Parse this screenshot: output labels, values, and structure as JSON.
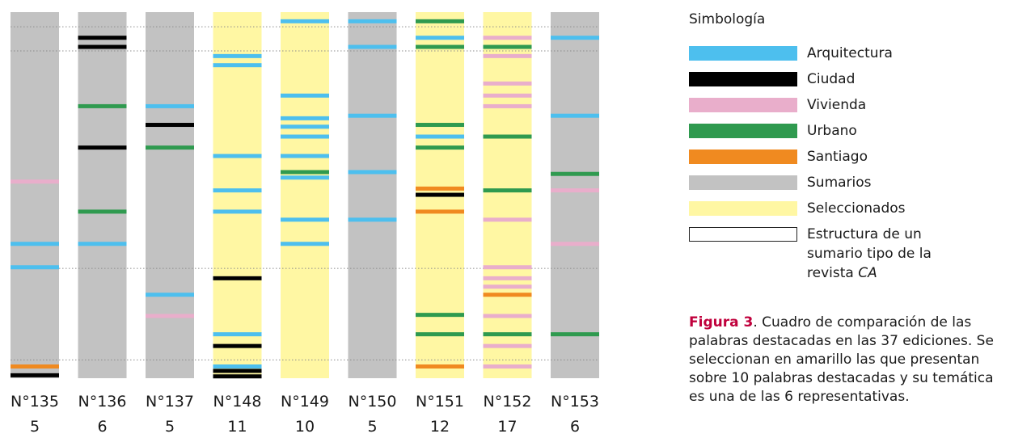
{
  "chart_data": {
    "type": "heatmap",
    "editions": [
      {
        "name": "N°135",
        "count": "5",
        "kind": "Sumarios",
        "marks": [
          {
            "pos": 0.463,
            "cat": "Vivienda"
          },
          {
            "pos": 0.633,
            "cat": "Arquitectura"
          },
          {
            "pos": 0.697,
            "cat": "Arquitectura"
          },
          {
            "pos": 0.968,
            "cat": "Santiago"
          },
          {
            "pos": 0.992,
            "cat": "Ciudad"
          }
        ]
      },
      {
        "name": "N°136",
        "count": "6",
        "kind": "Sumarios",
        "marks": [
          {
            "pos": 0.07,
            "cat": "Ciudad"
          },
          {
            "pos": 0.095,
            "cat": "Ciudad"
          },
          {
            "pos": 0.257,
            "cat": "Urbano"
          },
          {
            "pos": 0.37,
            "cat": "Ciudad"
          },
          {
            "pos": 0.545,
            "cat": "Urbano"
          },
          {
            "pos": 0.633,
            "cat": "Arquitectura"
          }
        ]
      },
      {
        "name": "N°137",
        "count": "5",
        "kind": "Sumarios",
        "marks": [
          {
            "pos": 0.257,
            "cat": "Arquitectura"
          },
          {
            "pos": 0.308,
            "cat": "Ciudad"
          },
          {
            "pos": 0.37,
            "cat": "Urbano"
          },
          {
            "pos": 0.772,
            "cat": "Arquitectura"
          },
          {
            "pos": 0.83,
            "cat": "Vivienda"
          }
        ]
      },
      {
        "name": "N°148",
        "count": "11",
        "kind": "Seleccionados",
        "marks": [
          {
            "pos": 0.12,
            "cat": "Arquitectura"
          },
          {
            "pos": 0.145,
            "cat": "Arquitectura"
          },
          {
            "pos": 0.393,
            "cat": "Arquitectura"
          },
          {
            "pos": 0.487,
            "cat": "Arquitectura"
          },
          {
            "pos": 0.545,
            "cat": "Arquitectura"
          },
          {
            "pos": 0.727,
            "cat": "Ciudad"
          },
          {
            "pos": 0.88,
            "cat": "Arquitectura"
          },
          {
            "pos": 0.912,
            "cat": "Ciudad"
          },
          {
            "pos": 0.968,
            "cat": "Arquitectura"
          },
          {
            "pos": 0.98,
            "cat": "Ciudad"
          },
          {
            "pos": 0.995,
            "cat": "Ciudad"
          }
        ]
      },
      {
        "name": "N°149",
        "count": "10",
        "kind": "Seleccionados",
        "marks": [
          {
            "pos": 0.025,
            "cat": "Arquitectura"
          },
          {
            "pos": 0.228,
            "cat": "Arquitectura"
          },
          {
            "pos": 0.29,
            "cat": "Arquitectura"
          },
          {
            "pos": 0.313,
            "cat": "Arquitectura"
          },
          {
            "pos": 0.34,
            "cat": "Arquitectura"
          },
          {
            "pos": 0.393,
            "cat": "Arquitectura"
          },
          {
            "pos": 0.437,
            "cat": "Urbano"
          },
          {
            "pos": 0.452,
            "cat": "Arquitectura"
          },
          {
            "pos": 0.567,
            "cat": "Arquitectura"
          },
          {
            "pos": 0.633,
            "cat": "Arquitectura"
          }
        ]
      },
      {
        "name": "N°150",
        "count": "5",
        "kind": "Sumarios",
        "marks": [
          {
            "pos": 0.025,
            "cat": "Arquitectura"
          },
          {
            "pos": 0.095,
            "cat": "Arquitectura"
          },
          {
            "pos": 0.283,
            "cat": "Arquitectura"
          },
          {
            "pos": 0.437,
            "cat": "Arquitectura"
          },
          {
            "pos": 0.567,
            "cat": "Arquitectura"
          }
        ]
      },
      {
        "name": "N°151",
        "count": "12",
        "kind": "Seleccionados",
        "marks": [
          {
            "pos": 0.025,
            "cat": "Urbano"
          },
          {
            "pos": 0.07,
            "cat": "Arquitectura"
          },
          {
            "pos": 0.095,
            "cat": "Urbano"
          },
          {
            "pos": 0.308,
            "cat": "Urbano"
          },
          {
            "pos": 0.34,
            "cat": "Arquitectura"
          },
          {
            "pos": 0.37,
            "cat": "Urbano"
          },
          {
            "pos": 0.482,
            "cat": "Santiago"
          },
          {
            "pos": 0.499,
            "cat": "Ciudad"
          },
          {
            "pos": 0.545,
            "cat": "Santiago"
          },
          {
            "pos": 0.827,
            "cat": "Urbano"
          },
          {
            "pos": 0.88,
            "cat": "Urbano"
          },
          {
            "pos": 0.968,
            "cat": "Santiago"
          }
        ]
      },
      {
        "name": "N°152",
        "count": "17",
        "kind": "Seleccionados",
        "marks": [
          {
            "pos": 0.07,
            "cat": "Vivienda"
          },
          {
            "pos": 0.095,
            "cat": "Urbano"
          },
          {
            "pos": 0.12,
            "cat": "Vivienda"
          },
          {
            "pos": 0.195,
            "cat": "Vivienda"
          },
          {
            "pos": 0.228,
            "cat": "Vivienda"
          },
          {
            "pos": 0.257,
            "cat": "Vivienda"
          },
          {
            "pos": 0.34,
            "cat": "Urbano"
          },
          {
            "pos": 0.487,
            "cat": "Urbano"
          },
          {
            "pos": 0.567,
            "cat": "Vivienda"
          },
          {
            "pos": 0.697,
            "cat": "Vivienda"
          },
          {
            "pos": 0.727,
            "cat": "Vivienda"
          },
          {
            "pos": 0.75,
            "cat": "Vivienda"
          },
          {
            "pos": 0.772,
            "cat": "Santiago"
          },
          {
            "pos": 0.83,
            "cat": "Vivienda"
          },
          {
            "pos": 0.88,
            "cat": "Urbano"
          },
          {
            "pos": 0.912,
            "cat": "Vivienda"
          },
          {
            "pos": 0.968,
            "cat": "Vivienda"
          }
        ]
      },
      {
        "name": "N°153",
        "count": "6",
        "kind": "Sumarios",
        "marks": [
          {
            "pos": 0.07,
            "cat": "Arquitectura"
          },
          {
            "pos": 0.283,
            "cat": "Arquitectura"
          },
          {
            "pos": 0.442,
            "cat": "Urbano"
          },
          {
            "pos": 0.487,
            "cat": "Vivienda"
          },
          {
            "pos": 0.633,
            "cat": "Vivienda"
          },
          {
            "pos": 0.88,
            "cat": "Urbano"
          }
        ]
      }
    ],
    "guide_lines": [
      0.04,
      0.106,
      0.7,
      0.95
    ]
  },
  "colors": {
    "Arquitectura": "#4dbfee",
    "Ciudad": "#000000",
    "Vivienda": "#e9aecb",
    "Urbano": "#2f9a4f",
    "Santiago": "#f08a20",
    "Sumarios": "#c2c2c2",
    "Seleccionados": "#fff7a3",
    "caption_head": "#c0003c"
  },
  "legend": {
    "title": "Simbología",
    "items": [
      {
        "label": "Arquitectura",
        "color": "#4dbfee"
      },
      {
        "label": "Ciudad",
        "color": "#000000"
      },
      {
        "label": "Vivienda",
        "color": "#e9aecb"
      },
      {
        "label": "Urbano",
        "color": "#2f9a4f"
      },
      {
        "label": "Santiago",
        "color": "#f08a20"
      },
      {
        "label": "Sumarios",
        "color": "#c2c2c2"
      },
      {
        "label": "Seleccionados",
        "color": "#fff7a3"
      }
    ],
    "structure_label": "Estructura de un sumario tipo de la revista",
    "structure_label_italic": "CA"
  },
  "caption": {
    "head": "Figura 3",
    "text": ". Cuadro de comparación de las palabras destacadas en las 37 ediciones. Se seleccionan en amarillo las que presentan sobre 10 palabras destacadas y su temática es una de las 6 representativas."
  }
}
